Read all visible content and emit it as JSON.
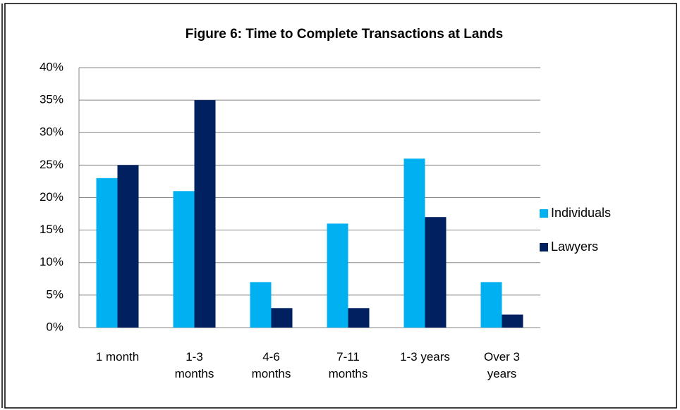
{
  "chart_data": {
    "type": "bar",
    "title": "Figure 6: Time to Complete Transactions  at Lands",
    "categories": [
      "1 month",
      "1-3 months",
      "4-6 months",
      "7-11 months",
      "1-3 years",
      "Over 3 years"
    ],
    "series": [
      {
        "name": "Individuals",
        "color": "#00b0f0",
        "values": [
          23,
          21,
          7,
          16,
          26,
          7
        ]
      },
      {
        "name": "Lawyers",
        "color": "#002060",
        "values": [
          25,
          35,
          3,
          3,
          17,
          2
        ]
      }
    ],
    "ylim": [
      0,
      40
    ],
    "yticks": [
      {
        "value": 0,
        "label": "0%"
      },
      {
        "value": 5,
        "label": "5%"
      },
      {
        "value": 10,
        "label": "10%"
      },
      {
        "value": 15,
        "label": "15%"
      },
      {
        "value": 20,
        "label": "20%"
      },
      {
        "value": 25,
        "label": "25%"
      },
      {
        "value": 30,
        "label": "30%"
      },
      {
        "value": 35,
        "label": "35%"
      },
      {
        "value": 40,
        "label": "40%"
      }
    ],
    "grid": true,
    "legend": "right"
  }
}
